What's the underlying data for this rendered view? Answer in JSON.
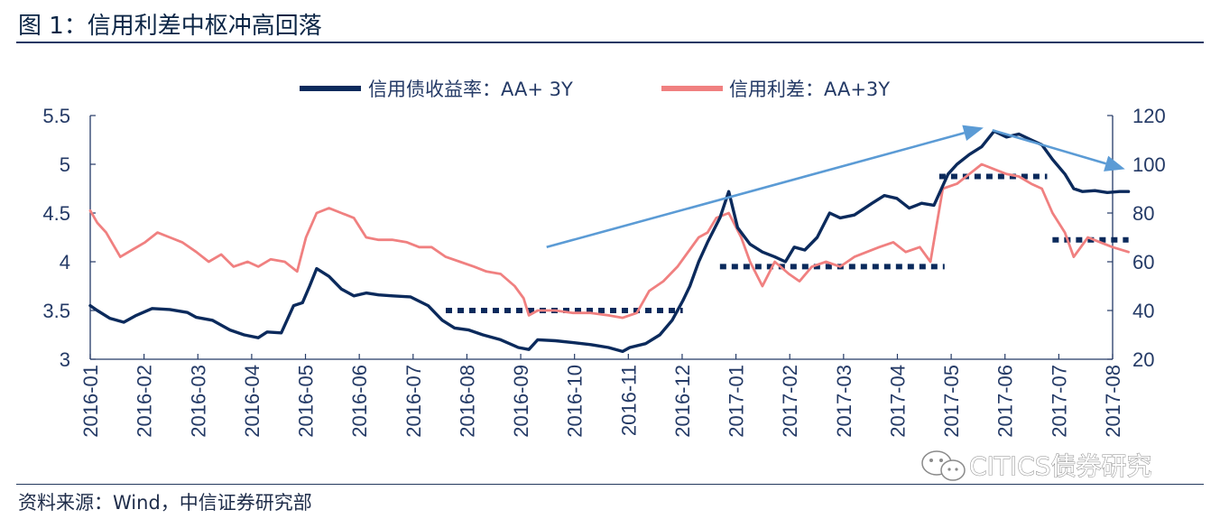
{
  "figure": {
    "title": "图 1：信用利差中枢冲高回落",
    "source": "资料来源：Wind，中信证券研究部",
    "watermark": "CITICS债券研究"
  },
  "chart_data": {
    "type": "line",
    "title": "图 1：信用利差中枢冲高回落",
    "x_ticks": [
      "2016-01",
      "2016-02",
      "2016-03",
      "2016-04",
      "2016-05",
      "2016-06",
      "2016-07",
      "2016-08",
      "2016-09",
      "2016-10",
      "2016-11",
      "2016-12",
      "2017-01",
      "2017-02",
      "2017-03",
      "2017-04",
      "2017-05",
      "2017-06",
      "2017-07",
      "2017-08"
    ],
    "y_left": {
      "ylim": [
        3,
        5.5
      ],
      "ticks": [
        "3",
        "3.5",
        "4",
        "4.5",
        "5",
        "5.5"
      ]
    },
    "y_right": {
      "ylim": [
        20,
        120
      ],
      "ticks": [
        "20",
        "40",
        "60",
        "80",
        "100",
        "120"
      ]
    },
    "legend_position": "top-center",
    "colors": {
      "yield": "#0b2a5c",
      "spread": "#f08080",
      "arrow": "#5b9bd5",
      "dash": "#0b2a5c"
    },
    "series": [
      {
        "name": "信用债收益率：AA+ 3Y",
        "axis": "left",
        "points": [
          [
            "2016-01-01",
            3.55
          ],
          [
            "2016-01-05",
            3.5
          ],
          [
            "2016-01-12",
            3.42
          ],
          [
            "2016-01-20",
            3.38
          ],
          [
            "2016-01-27",
            3.45
          ],
          [
            "2016-02-05",
            3.52
          ],
          [
            "2016-02-15",
            3.51
          ],
          [
            "2016-02-25",
            3.48
          ],
          [
            "2016-03-01",
            3.43
          ],
          [
            "2016-03-10",
            3.4
          ],
          [
            "2016-03-20",
            3.3
          ],
          [
            "2016-03-28",
            3.25
          ],
          [
            "2016-04-05",
            3.22
          ],
          [
            "2016-04-10",
            3.28
          ],
          [
            "2016-04-18",
            3.27
          ],
          [
            "2016-04-25",
            3.55
          ],
          [
            "2016-04-30",
            3.58
          ],
          [
            "2016-05-04",
            3.75
          ],
          [
            "2016-05-08",
            3.93
          ],
          [
            "2016-05-15",
            3.85
          ],
          [
            "2016-05-22",
            3.72
          ],
          [
            "2016-05-29",
            3.65
          ],
          [
            "2016-06-05",
            3.68
          ],
          [
            "2016-06-12",
            3.66
          ],
          [
            "2016-06-20",
            3.65
          ],
          [
            "2016-06-30",
            3.64
          ],
          [
            "2016-07-10",
            3.55
          ],
          [
            "2016-07-18",
            3.4
          ],
          [
            "2016-07-25",
            3.32
          ],
          [
            "2016-08-02",
            3.3
          ],
          [
            "2016-08-10",
            3.25
          ],
          [
            "2016-08-20",
            3.2
          ],
          [
            "2016-08-30",
            3.12
          ],
          [
            "2016-09-05",
            3.1
          ],
          [
            "2016-09-10",
            3.2
          ],
          [
            "2016-09-20",
            3.19
          ],
          [
            "2016-09-30",
            3.17
          ],
          [
            "2016-10-10",
            3.15
          ],
          [
            "2016-10-20",
            3.12
          ],
          [
            "2016-10-28",
            3.08
          ],
          [
            "2016-11-01",
            3.12
          ],
          [
            "2016-11-10",
            3.16
          ],
          [
            "2016-11-18",
            3.25
          ],
          [
            "2016-11-25",
            3.4
          ],
          [
            "2016-12-01",
            3.6
          ],
          [
            "2016-12-05",
            3.75
          ],
          [
            "2016-12-10",
            4.0
          ],
          [
            "2016-12-15",
            4.2
          ],
          [
            "2016-12-22",
            4.45
          ],
          [
            "2016-12-27",
            4.72
          ],
          [
            "2017-01-01",
            4.35
          ],
          [
            "2017-01-08",
            4.18
          ],
          [
            "2017-01-15",
            4.1
          ],
          [
            "2017-01-22",
            4.05
          ],
          [
            "2017-01-28",
            4.0
          ],
          [
            "2017-02-02",
            4.15
          ],
          [
            "2017-02-08",
            4.12
          ],
          [
            "2017-02-15",
            4.25
          ],
          [
            "2017-02-22",
            4.5
          ],
          [
            "2017-02-28",
            4.45
          ],
          [
            "2017-03-08",
            4.48
          ],
          [
            "2017-03-18",
            4.6
          ],
          [
            "2017-03-25",
            4.68
          ],
          [
            "2017-04-01",
            4.65
          ],
          [
            "2017-04-08",
            4.55
          ],
          [
            "2017-04-15",
            4.6
          ],
          [
            "2017-04-22",
            4.58
          ],
          [
            "2017-04-30",
            4.9
          ],
          [
            "2017-05-05",
            5.0
          ],
          [
            "2017-05-12",
            5.1
          ],
          [
            "2017-05-19",
            5.18
          ],
          [
            "2017-05-26",
            5.34
          ],
          [
            "2017-06-02",
            5.28
          ],
          [
            "2017-06-09",
            5.31
          ],
          [
            "2017-06-16",
            5.25
          ],
          [
            "2017-06-22",
            5.2
          ],
          [
            "2017-06-28",
            5.05
          ],
          [
            "2017-07-05",
            4.9
          ],
          [
            "2017-07-10",
            4.75
          ],
          [
            "2017-07-15",
            4.72
          ],
          [
            "2017-07-22",
            4.73
          ],
          [
            "2017-07-29",
            4.71
          ],
          [
            "2017-08-05",
            4.72
          ],
          [
            "2017-08-10",
            4.72
          ]
        ]
      },
      {
        "name": "信用利差：AA+3Y",
        "axis": "right",
        "points": [
          [
            "2016-01-01",
            81
          ],
          [
            "2016-01-05",
            76
          ],
          [
            "2016-01-10",
            72
          ],
          [
            "2016-01-18",
            62
          ],
          [
            "2016-01-25",
            65
          ],
          [
            "2016-02-01",
            68
          ],
          [
            "2016-02-08",
            72
          ],
          [
            "2016-02-15",
            70
          ],
          [
            "2016-02-22",
            68
          ],
          [
            "2016-03-01",
            64
          ],
          [
            "2016-03-08",
            60
          ],
          [
            "2016-03-15",
            63
          ],
          [
            "2016-03-22",
            58
          ],
          [
            "2016-03-30",
            60
          ],
          [
            "2016-04-05",
            58
          ],
          [
            "2016-04-12",
            61
          ],
          [
            "2016-04-20",
            60
          ],
          [
            "2016-04-27",
            56
          ],
          [
            "2016-05-02",
            70
          ],
          [
            "2016-05-08",
            80
          ],
          [
            "2016-05-15",
            82
          ],
          [
            "2016-05-22",
            80
          ],
          [
            "2016-05-29",
            78
          ],
          [
            "2016-06-05",
            70
          ],
          [
            "2016-06-12",
            69
          ],
          [
            "2016-06-20",
            69
          ],
          [
            "2016-06-28",
            68
          ],
          [
            "2016-07-05",
            66
          ],
          [
            "2016-07-12",
            66
          ],
          [
            "2016-07-20",
            62
          ],
          [
            "2016-07-28",
            60
          ],
          [
            "2016-08-05",
            58
          ],
          [
            "2016-08-12",
            56
          ],
          [
            "2016-08-20",
            55
          ],
          [
            "2016-08-28",
            50
          ],
          [
            "2016-09-02",
            45
          ],
          [
            "2016-09-05",
            38
          ],
          [
            "2016-09-10",
            40
          ],
          [
            "2016-09-20",
            40
          ],
          [
            "2016-09-30",
            39
          ],
          [
            "2016-10-10",
            39
          ],
          [
            "2016-10-20",
            38
          ],
          [
            "2016-10-28",
            37
          ],
          [
            "2016-11-05",
            39
          ],
          [
            "2016-11-12",
            48
          ],
          [
            "2016-11-20",
            52
          ],
          [
            "2016-11-28",
            58
          ],
          [
            "2016-12-05",
            65
          ],
          [
            "2016-12-10",
            70
          ],
          [
            "2016-12-15",
            72
          ],
          [
            "2016-12-20",
            78
          ],
          [
            "2016-12-27",
            80
          ],
          [
            "2017-01-03",
            70
          ],
          [
            "2017-01-08",
            60
          ],
          [
            "2017-01-15",
            50
          ],
          [
            "2017-01-22",
            60
          ],
          [
            "2017-01-30",
            55
          ],
          [
            "2017-02-05",
            52
          ],
          [
            "2017-02-12",
            58
          ],
          [
            "2017-02-20",
            60
          ],
          [
            "2017-02-28",
            58
          ],
          [
            "2017-03-08",
            62
          ],
          [
            "2017-03-15",
            64
          ],
          [
            "2017-03-22",
            66
          ],
          [
            "2017-03-30",
            68
          ],
          [
            "2017-04-06",
            64
          ],
          [
            "2017-04-14",
            66
          ],
          [
            "2017-04-20",
            60
          ],
          [
            "2017-04-27",
            90
          ],
          [
            "2017-05-05",
            92
          ],
          [
            "2017-05-12",
            96
          ],
          [
            "2017-05-19",
            100
          ],
          [
            "2017-05-26",
            98
          ],
          [
            "2017-06-02",
            96
          ],
          [
            "2017-06-09",
            95
          ],
          [
            "2017-06-16",
            92
          ],
          [
            "2017-06-22",
            90
          ],
          [
            "2017-06-28",
            80
          ],
          [
            "2017-07-05",
            72
          ],
          [
            "2017-07-10",
            62
          ],
          [
            "2017-07-18",
            70
          ],
          [
            "2017-07-25",
            68
          ],
          [
            "2017-08-01",
            66
          ],
          [
            "2017-08-10",
            64
          ]
        ]
      }
    ],
    "reference_levels": [
      {
        "axis": "right",
        "value": 40,
        "from": "2016-07-20",
        "to": "2016-12-01"
      },
      {
        "axis": "right",
        "value": 58,
        "from": "2016-12-22",
        "to": "2017-04-28"
      },
      {
        "axis": "right",
        "value": 95,
        "from": "2017-04-25",
        "to": "2017-06-25"
      },
      {
        "axis": "right",
        "value": 69,
        "from": "2017-06-28",
        "to": "2017-08-10"
      }
    ],
    "trend_arrows": [
      {
        "axis": "right",
        "from": [
          "2016-09-15",
          66
        ],
        "to": [
          "2017-05-20",
          115
        ]
      },
      {
        "axis": "right",
        "from": [
          "2017-05-25",
          114
        ],
        "to": [
          "2017-08-08",
          98
        ]
      }
    ]
  }
}
